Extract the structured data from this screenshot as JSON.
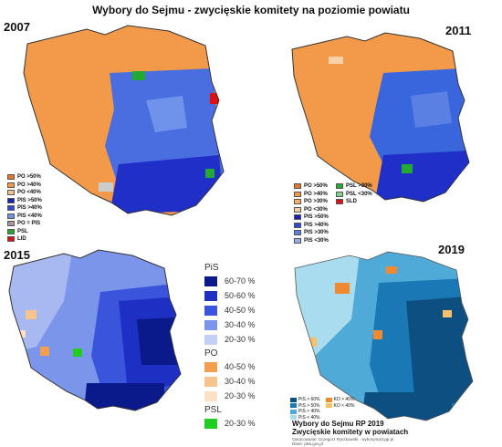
{
  "title": "Wybory do Sejmu - zwycięskie komitety na poziomie powiatu",
  "maps": [
    {
      "year": "2007",
      "colors": {
        "main": "#f2994a",
        "west_light": "#f5b06a",
        "east": "#4a6ee0",
        "south": "#1f2fc8",
        "accent_green": "#22aa33",
        "accent_red": "#dd1111"
      },
      "legend": [
        {
          "label": "PO >50%",
          "color": "#e8752a"
        },
        {
          "label": "PO >40%",
          "color": "#f2994a"
        },
        {
          "label": "PO <40%",
          "color": "#f8c08a"
        },
        {
          "label": "PIS >50%",
          "color": "#1a20b8"
        },
        {
          "label": "PIS >40%",
          "color": "#3048d8"
        },
        {
          "label": "PIS <40%",
          "color": "#6f93ea"
        },
        {
          "label": "PO = PIS",
          "color": "#cccccc"
        },
        {
          "label": "PSL",
          "color": "#22aa33"
        },
        {
          "label": "LID",
          "color": "#dd1111"
        }
      ]
    },
    {
      "year": "2011",
      "colors": {
        "main": "#f2994a",
        "east": "#3a66dd",
        "south": "#1f2fc8",
        "accent_green": "#22aa33",
        "accent_red": "#dd1111"
      },
      "legend": [
        {
          "label": "PO >50%",
          "color": "#e8752a"
        },
        {
          "label": "PO >40%",
          "color": "#f2994a"
        },
        {
          "label": "PO >30%",
          "color": "#f6b070"
        },
        {
          "label": "PO <30%",
          "color": "#fad0a6"
        },
        {
          "label": "PIS >50%",
          "color": "#1a20b8"
        },
        {
          "label": "PIS >40%",
          "color": "#3048d8"
        },
        {
          "label": "PIS >30%",
          "color": "#5a80e4"
        },
        {
          "label": "PIS <30%",
          "color": "#8fb0ee"
        }
      ],
      "legend_right": [
        {
          "label": "PSL >30%",
          "color": "#22aa33"
        },
        {
          "label": "PSL <30%",
          "color": "#7fd08a"
        },
        {
          "label": "SLD",
          "color": "#dd1111"
        }
      ]
    },
    {
      "year": "2015",
      "legend_groups": [
        {
          "name": "PiS",
          "items": [
            {
              "label": "60-70 %",
              "color": "#0a1a8a"
            },
            {
              "label": "50-60 %",
              "color": "#1e2fc4"
            },
            {
              "label": "40-50 %",
              "color": "#3b54dc"
            },
            {
              "label": "30-40 %",
              "color": "#7a95ea"
            },
            {
              "label": "20-30 %",
              "color": "#c3d0f6"
            }
          ]
        },
        {
          "name": "PO",
          "items": [
            {
              "label": "40-50 %",
              "color": "#f2a050"
            },
            {
              "label": "30-40 %",
              "color": "#f7c48e"
            },
            {
              "label": "20-30 %",
              "color": "#fbe2c6"
            }
          ]
        },
        {
          "name": "PSL",
          "items": [
            {
              "label": "20-30 %",
              "color": "#22cc22"
            }
          ]
        }
      ]
    },
    {
      "year": "2019",
      "legend": [
        {
          "label": "PiS > 60%",
          "color": "#0d4f80"
        },
        {
          "label": "PiS > 50%",
          "color": "#1a78b4"
        },
        {
          "label": "PiS > 40%",
          "color": "#4faad8"
        },
        {
          "label": "PiS < 40%",
          "color": "#a9dcee"
        }
      ],
      "legend_right": [
        {
          "label": "KO > 40%",
          "color": "#f08a30"
        },
        {
          "label": "KO < 40%",
          "color": "#f7c16a"
        }
      ],
      "credit_title": "Wybory do Sejmu RP 2019",
      "credit_subtitle": "Zwycięskie komitety w powiatach",
      "credit_small_1": "Opracowanie: Grzegorz Ryszkowski · wyborymarzygr.pl",
      "credit_small_2": "Dane: pkw.gov.pl"
    }
  ]
}
